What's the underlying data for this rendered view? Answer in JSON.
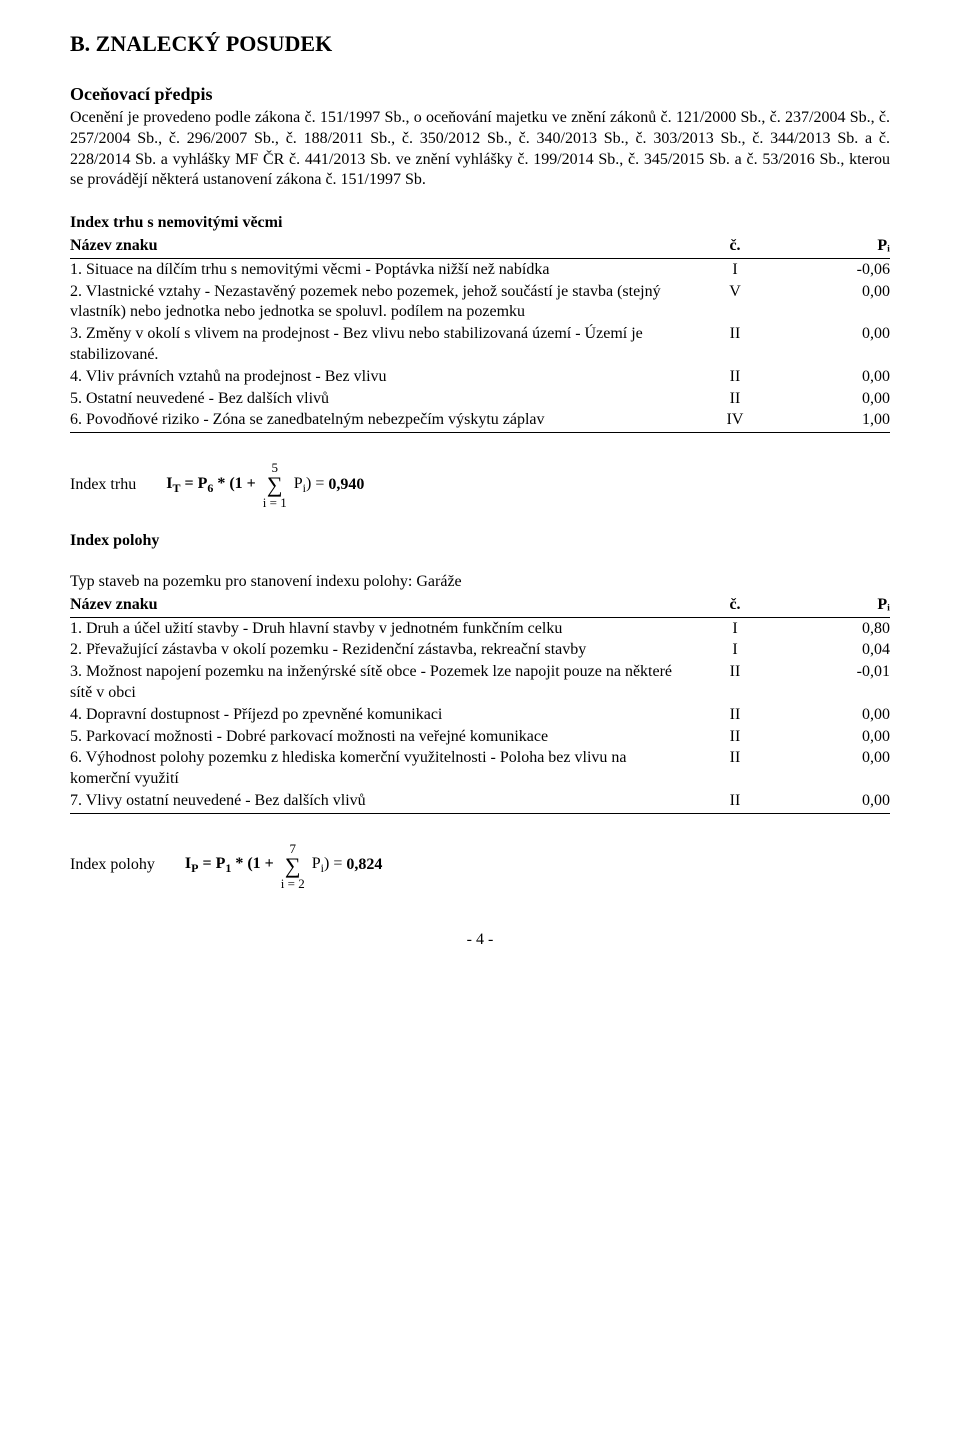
{
  "mainHeading": "B. ZNALECKÝ POSUDEK",
  "subHeading": "Oceňovací předpis",
  "paragraph": "Ocenění je provedeno podle zákona č. 151/1997 Sb., o oceňování majetku ve znění zákonů č. 121/2000 Sb., č. 237/2004 Sb., č. 257/2004 Sb., č. 296/2007 Sb., č. 188/2011 Sb., č. 350/2012 Sb., č. 340/2013 Sb., č. 303/2013 Sb., č. 344/2013 Sb. a č. 228/2014 Sb. a vyhlášky MF ČR č. 441/2013 Sb. ve znění vyhlášky č. 199/2014 Sb., č. 345/2015 Sb. a č. 53/2016 Sb., kterou se provádějí některá ustanovení zákona č. 151/1997 Sb.",
  "table1": {
    "heading": "Index trhu s nemovitými věcmi",
    "header": {
      "name": "Název znaku",
      "c": "č.",
      "p": "Pᵢ"
    },
    "rows": [
      {
        "name": "1. Situace na dílčím trhu s nemovitými věcmi - Poptávka nižší než nabídka",
        "c": "I",
        "p": "-0,06"
      },
      {
        "name": "2. Vlastnické vztahy - Nezastavěný pozemek nebo pozemek, jehož součástí je stavba (stejný vlastník) nebo jednotka nebo jednotka se spoluvl. podílem na pozemku",
        "c": "V",
        "p": "0,00"
      },
      {
        "name": "3. Změny v okolí s vlivem na prodejnost - Bez vlivu nebo stabilizovaná území - Území je stabilizované.",
        "c": "II",
        "p": "0,00"
      },
      {
        "name": "4. Vliv právních vztahů na prodejnost - Bez vlivu",
        "c": "II",
        "p": "0,00"
      },
      {
        "name": "5. Ostatní neuvedené - Bez dalších vlivů",
        "c": "II",
        "p": "0,00"
      },
      {
        "name": "6. Povodňové riziko - Zóna se zanedbatelným nebezpečím výskytu záplav",
        "c": "IV",
        "p": "1,00"
      }
    ]
  },
  "formula1": {
    "label": "Index trhu",
    "prefix": "Iᴛ = P₆ * (1 +",
    "sigmaTop": "5",
    "sigmaBottom": "i = 1",
    "mid": "Pᵢ) =",
    "result": "0,940"
  },
  "polohaHeading": "Index polohy",
  "typLine": "Typ staveb na pozemku pro stanovení indexu polohy: Garáže",
  "table2": {
    "header": {
      "name": "Název znaku",
      "c": "č.",
      "p": "Pᵢ"
    },
    "rows": [
      {
        "name": "1. Druh a účel užití stavby - Druh hlavní stavby v jednotném funkčním celku",
        "c": "I",
        "p": "0,80"
      },
      {
        "name": "2. Převažující zástavba v okolí pozemku - Rezidenční zástavba, rekreační stavby",
        "c": "I",
        "p": "0,04"
      },
      {
        "name": "3. Možnost napojení pozemku na inženýrské sítě obce - Pozemek lze napojit pouze na některé sítě v obci",
        "c": "II",
        "p": "-0,01"
      },
      {
        "name": "4. Dopravní dostupnost - Příjezd po zpevněné komunikaci",
        "c": "II",
        "p": "0,00"
      },
      {
        "name": "5. Parkovací možnosti - Dobré parkovací možnosti na veřejné komunikace",
        "c": "II",
        "p": "0,00"
      },
      {
        "name": "6. Výhodnost polohy pozemku z hlediska komerční využitelnosti - Poloha bez vlivu na komerční využití",
        "c": "II",
        "p": "0,00"
      },
      {
        "name": "7. Vlivy ostatní neuvedené - Bez dalších vlivů",
        "c": "II",
        "p": "0,00"
      }
    ]
  },
  "formula2": {
    "label": "Index polohy",
    "prefix": "Iₚ = P₁ * (1 +",
    "sigmaTop": "7",
    "sigmaBottom": "i = 2",
    "mid": "Pᵢ) =",
    "result": "0,824"
  },
  "pageNum": "- 4 -"
}
